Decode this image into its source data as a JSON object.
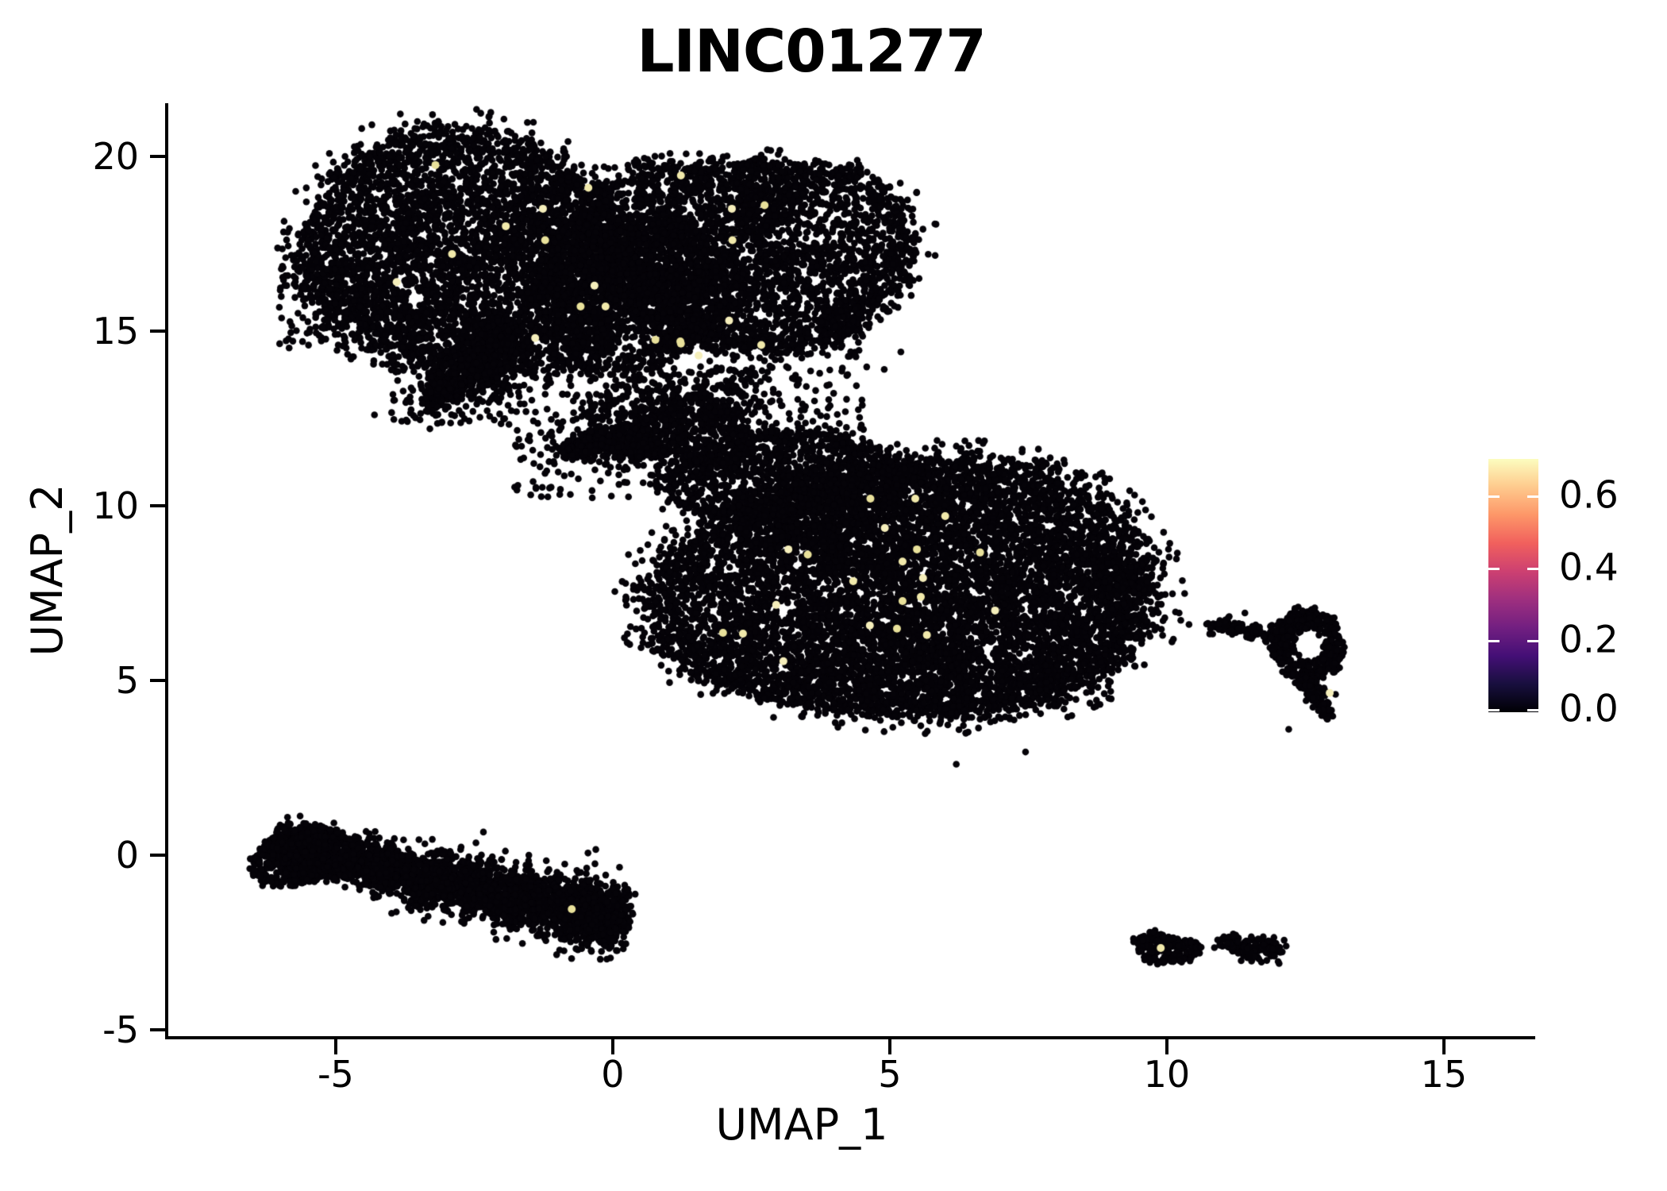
{
  "title": "LINC01277",
  "axes": {
    "x": {
      "label": "UMAP_1",
      "ticks": [
        -5,
        0,
        5,
        10,
        15
      ],
      "domain": [
        -8.05,
        16.62
      ]
    },
    "y": {
      "label": "UMAP_2",
      "ticks": [
        20,
        15,
        10,
        5,
        0,
        -5
      ],
      "domain": [
        -5.23,
        21.52
      ]
    }
  },
  "legend": {
    "tick_labels": [
      "0.6",
      "0.4",
      "0.2",
      "0.0"
    ],
    "tick_values": [
      0.6,
      0.4,
      0.2,
      0.0
    ],
    "bar_range": [
      0,
      0.701
    ],
    "colormap": "magma",
    "gradient": [
      "#000004",
      "#180f3e",
      "#440f76",
      "#721f81",
      "#9e2f7f",
      "#cd4071",
      "#f1605d",
      "#fd9668",
      "#feca8d",
      "#fcfdbf"
    ]
  },
  "style": {
    "point_color": "#050308",
    "high_point_colors": [
      "#e9e19b",
      "#f1e9ab",
      "#f5eebb"
    ],
    "point_radius": 4.3,
    "high_point_radius": 5.0,
    "axis_color": "#000000",
    "background": "#ffffff"
  },
  "chart_data": {
    "type": "scatter",
    "title": "LINC01277",
    "xlabel": "UMAP_1",
    "ylabel": "UMAP_2",
    "xlim": [
      -8.05,
      16.62
    ],
    "ylim": [
      -5.23,
      21.52
    ],
    "color_scale": {
      "feature": "LINC01277",
      "min": 0.0,
      "max": 0.701,
      "colormap": "magma"
    },
    "clusters": [
      {
        "id": "top-left-blob",
        "type": "blob",
        "cx": -2.55,
        "cy": 17.15,
        "rx": 2.95,
        "ry": 3.05,
        "rot": -8,
        "n": 4600,
        "edge": 0.22,
        "wobble": 0.07
      },
      {
        "id": "top-right-lobe",
        "type": "blob",
        "cx": 2.5,
        "cy": 17.3,
        "rx": 2.45,
        "ry": 2.65,
        "rot": 0,
        "n": 3400,
        "edge": 0.3,
        "wobble": 0.09
      },
      {
        "id": "top-mid",
        "type": "blob",
        "cx": 0.35,
        "cy": 16.1,
        "rx": 1.7,
        "ry": 2.0,
        "rot": 0,
        "n": 1600,
        "edge": 0.25,
        "wobble": 0.08
      },
      {
        "id": "top-tail",
        "type": "stroke",
        "x1": -3.35,
        "y1": 12.95,
        "x2": -1.7,
        "y2": 14.9,
        "w1": 0.12,
        "w2": 0.55,
        "n": 650
      },
      {
        "id": "beak",
        "type": "stroke",
        "x1": -0.9,
        "y1": 11.65,
        "x2": 2.4,
        "y2": 12.35,
        "w1": 0.1,
        "w2": 0.75,
        "n": 950
      },
      {
        "id": "bridge",
        "type": "field",
        "x0": -1.8,
        "x1": 4.6,
        "y0": 10.2,
        "y1": 14.0,
        "n": 420
      },
      {
        "id": "bottom-halo",
        "type": "field",
        "x0": -4.0,
        "x1": -1.8,
        "y0": 12.3,
        "y1": 14.3,
        "n": 140
      },
      {
        "id": "left-halo",
        "type": "field",
        "x0": -6.05,
        "x1": -4.8,
        "y0": 14.5,
        "y1": 18.3,
        "n": 70
      },
      {
        "id": "bridge-clump-1",
        "type": "blob",
        "cx": 0.4,
        "cy": 12.9,
        "rx": 0.75,
        "ry": 0.6,
        "rot": 0,
        "n": 110,
        "edge": 0.5,
        "wobble": 0.15
      },
      {
        "id": "bridge-clump-2",
        "type": "blob",
        "cx": 2.0,
        "cy": 13.3,
        "rx": 0.8,
        "ry": 0.55,
        "rot": 0,
        "n": 90,
        "edge": 0.5,
        "wobble": 0.15
      },
      {
        "id": "right-lobe-tail",
        "type": "blob",
        "cx": 4.15,
        "cy": 15.05,
        "rx": 0.4,
        "ry": 0.6,
        "rot": 0,
        "n": 90,
        "edge": 0.5,
        "wobble": 0.2
      },
      {
        "id": "central",
        "type": "blob",
        "cx": 5.35,
        "cy": 7.55,
        "rx": 3.9,
        "ry": 3.55,
        "rot": -13,
        "n": 8800,
        "edge": 0.26,
        "wobble": 0.07
      },
      {
        "id": "central-nub",
        "type": "stroke",
        "x1": 8.7,
        "y1": 7.95,
        "x2": 9.65,
        "y2": 7.7,
        "w1": 0.3,
        "w2": 0.08,
        "n": 140
      },
      {
        "id": "central-shoulder",
        "type": "blob",
        "cx": 3.1,
        "cy": 10.85,
        "rx": 1.95,
        "ry": 1.15,
        "rot": -18,
        "n": 1050,
        "edge": 0.35,
        "wobble": 0.1
      },
      {
        "id": "stripe-head",
        "type": "blob",
        "cx": -5.55,
        "cy": -0.05,
        "rx": 0.85,
        "ry": 0.75,
        "rot": -20,
        "n": 700,
        "edge": 0.3,
        "wobble": 0.12
      },
      {
        "id": "stripe",
        "type": "stroke",
        "x1": -6.1,
        "y1": 0.35,
        "x2": 0.25,
        "y2": -1.85,
        "cx": -2.7,
        "cy": -0.95,
        "w1": 0.25,
        "w2": 0.42,
        "n": 3100
      },
      {
        "id": "donut-trail",
        "type": "stroke",
        "x1": 10.8,
        "y1": 6.6,
        "x2": 12.0,
        "y2": 6.3,
        "w1": 0.08,
        "w2": 0.16,
        "n": 110
      },
      {
        "id": "donut",
        "type": "ring",
        "cx": 12.55,
        "cy": 6.0,
        "rxOuter": 0.66,
        "ryOuter": 1.05,
        "rxInner": 0.26,
        "ryInner": 0.42,
        "n": 430
      },
      {
        "id": "donut-tail",
        "type": "stroke",
        "x1": 12.5,
        "y1": 5.1,
        "x2": 12.9,
        "y2": 4.05,
        "w1": 0.2,
        "w2": 0.08,
        "n": 130
      },
      {
        "id": "br-blob-left",
        "type": "blob",
        "cx": 9.98,
        "cy": -2.68,
        "rx": 0.45,
        "ry": 0.4,
        "rot": 0,
        "n": 190,
        "edge": 0.35,
        "wobble": 0.18
      },
      {
        "id": "br-blob-right",
        "type": "stroke",
        "x1": 11.0,
        "y1": -2.42,
        "x2": 12.0,
        "y2": -2.7,
        "cx": 11.5,
        "cy": -2.8,
        "w1": 0.1,
        "w2": 0.14,
        "n": 170
      }
    ],
    "outlier_points": [
      [
        10.62,
        -2.64
      ],
      [
        9.6,
        -3.0
      ],
      [
        5.56,
        3.7
      ],
      [
        7.45,
        2.95
      ],
      [
        6.2,
        2.6
      ],
      [
        -3.3,
        12.2
      ],
      [
        0.9,
        9.9
      ],
      [
        1.1,
        9.3
      ],
      [
        4.9,
        13.9
      ],
      [
        5.2,
        14.4
      ],
      [
        -4.3,
        12.6
      ],
      [
        10.4,
        6.6
      ],
      [
        12.2,
        3.6
      ]
    ],
    "high_expression_points": [
      [
        -3.2,
        19.75
      ],
      [
        -1.93,
        18.0
      ],
      [
        -1.26,
        18.5
      ],
      [
        -1.22,
        17.6
      ],
      [
        -0.44,
        19.1
      ],
      [
        -0.33,
        16.3
      ],
      [
        -0.58,
        15.7
      ],
      [
        -0.13,
        15.7
      ],
      [
        -1.4,
        14.8
      ],
      [
        0.77,
        14.75
      ],
      [
        1.23,
        19.45
      ],
      [
        2.15,
        18.5
      ],
      [
        2.74,
        18.6
      ],
      [
        2.16,
        17.6
      ],
      [
        2.1,
        15.3
      ],
      [
        1.22,
        14.7
      ],
      [
        2.68,
        14.6
      ],
      [
        1.55,
        14.3
      ],
      [
        1.23,
        14.64
      ],
      [
        -2.9,
        17.2
      ],
      [
        -3.9,
        16.4
      ],
      [
        4.65,
        10.2
      ],
      [
        5.46,
        10.2
      ],
      [
        4.91,
        9.36
      ],
      [
        5.49,
        8.75
      ],
      [
        5.23,
        8.4
      ],
      [
        3.17,
        8.75
      ],
      [
        3.52,
        8.6
      ],
      [
        4.34,
        7.84
      ],
      [
        5.6,
        7.93
      ],
      [
        5.23,
        7.27
      ],
      [
        5.56,
        7.39
      ],
      [
        2.95,
        7.16
      ],
      [
        1.99,
        6.36
      ],
      [
        2.35,
        6.34
      ],
      [
        4.64,
        6.57
      ],
      [
        5.13,
        6.48
      ],
      [
        5.67,
        6.3
      ],
      [
        3.08,
        5.55
      ],
      [
        6.63,
        8.66
      ],
      [
        6.0,
        9.7
      ],
      [
        6.9,
        7.0
      ],
      [
        -0.74,
        -1.55
      ],
      [
        9.89,
        -2.66
      ],
      [
        12.94,
        4.64
      ]
    ]
  }
}
